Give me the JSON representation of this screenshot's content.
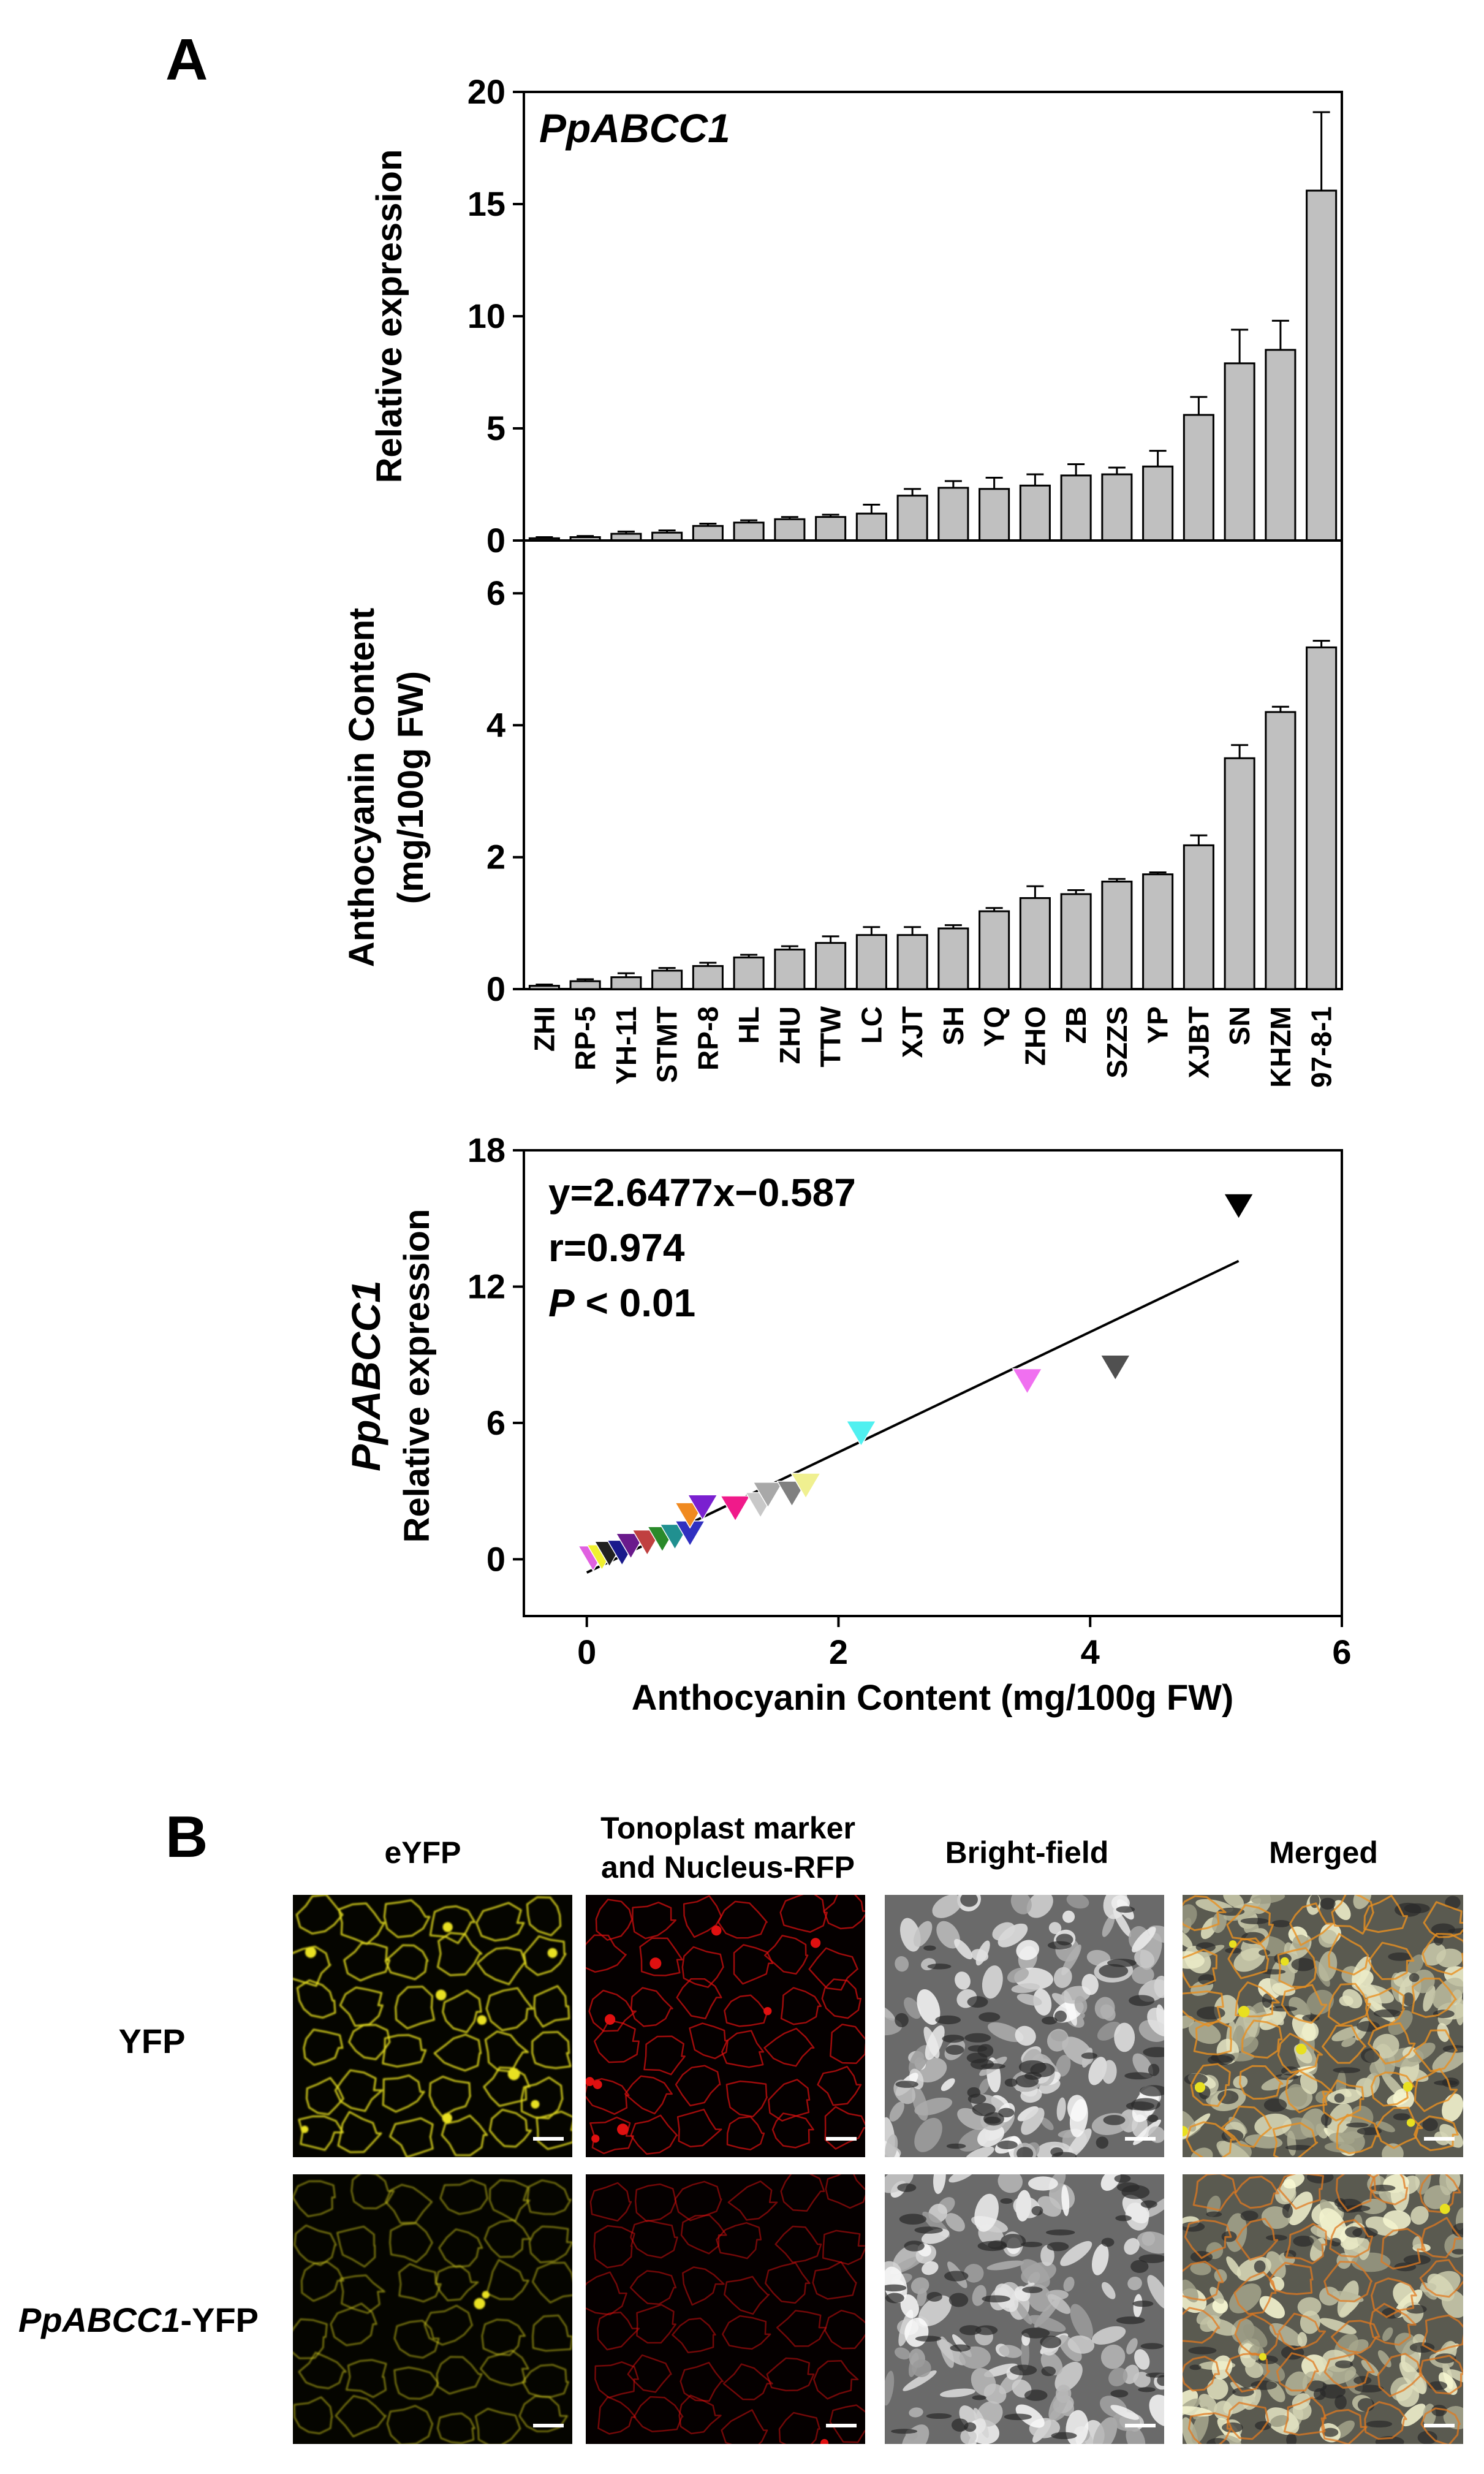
{
  "panel_a_label": "A",
  "panel_b_label": "B",
  "chart_data": [
    {
      "type": "bar",
      "title": "PpABCC1",
      "ylabel": "Relative expression",
      "xlabel": "",
      "ylim": [
        0,
        20
      ],
      "yticks": [
        "0",
        "5",
        "10",
        "15",
        "20"
      ],
      "categories": [
        "ZHI",
        "RP-5",
        "YH-11",
        "STMT",
        "RP-8",
        "HL",
        "ZHU",
        "TTW",
        "LC",
        "XJT",
        "SH",
        "YQ",
        "ZHO",
        "ZB",
        "SZZS",
        "YP",
        "XJBT",
        "SN",
        "KHZM",
        "97-8-1"
      ],
      "values": [
        0.1,
        0.15,
        0.3,
        0.35,
        0.65,
        0.8,
        0.95,
        1.05,
        1.2,
        2.0,
        2.35,
        2.3,
        2.45,
        2.9,
        2.95,
        3.3,
        5.6,
        7.9,
        8.5,
        15.6
      ],
      "errors": [
        0.05,
        0.05,
        0.1,
        0.1,
        0.1,
        0.1,
        0.1,
        0.1,
        0.4,
        0.3,
        0.3,
        0.5,
        0.5,
        0.5,
        0.3,
        0.7,
        0.8,
        1.5,
        1.3,
        3.5
      ]
    },
    {
      "type": "bar",
      "title": "",
      "ylabel_line1": "Anthocyanin Content",
      "ylabel_line2": "(mg/100g FW)",
      "xlabel": "",
      "ylim": [
        0,
        6.8
      ],
      "yticks": [
        "0",
        "2",
        "4",
        "6"
      ],
      "categories": [
        "ZHI",
        "RP-5",
        "YH-11",
        "STMT",
        "RP-8",
        "HL",
        "ZHU",
        "TTW",
        "LC",
        "XJT",
        "SH",
        "YQ",
        "ZHO",
        "ZB",
        "SZZS",
        "YP",
        "XJBT",
        "SN",
        "KHZM",
        "97-8-1"
      ],
      "values": [
        0.05,
        0.12,
        0.18,
        0.28,
        0.35,
        0.48,
        0.6,
        0.7,
        0.82,
        0.82,
        0.92,
        1.18,
        1.38,
        1.44,
        1.63,
        1.74,
        2.18,
        3.5,
        4.2,
        5.18
      ],
      "errors": [
        0.02,
        0.03,
        0.06,
        0.04,
        0.05,
        0.04,
        0.05,
        0.1,
        0.12,
        0.12,
        0.05,
        0.05,
        0.18,
        0.06,
        0.04,
        0.03,
        0.15,
        0.2,
        0.08,
        0.1
      ]
    },
    {
      "type": "scatter",
      "title": "",
      "ylabel_gene": "PpABCC1",
      "ylabel": "Relative expression",
      "xlabel": "Anthocyanin Content (mg/100g FW)",
      "xlim": [
        -0.5,
        6
      ],
      "ylim": [
        -2.5,
        18
      ],
      "xticks": [
        "0",
        "2",
        "4",
        "6"
      ],
      "yticks": [
        "0",
        "6",
        "12",
        "18"
      ],
      "equation": "y=2.6477x−0.587",
      "r_value": "r=0.974",
      "p_label": "P",
      "p_rest": " < 0.01",
      "fit": {
        "slope": 2.6477,
        "intercept": -0.587,
        "x_range": [
          0,
          5.18
        ]
      },
      "points": [
        {
          "x": 0.05,
          "y": 0.1,
          "color": "#e060e0"
        },
        {
          "x": 0.12,
          "y": 0.15,
          "color": "#f0f030"
        },
        {
          "x": 0.18,
          "y": 0.3,
          "color": "#202020"
        },
        {
          "x": 0.28,
          "y": 0.35,
          "color": "#1a1a8c"
        },
        {
          "x": 0.35,
          "y": 0.65,
          "color": "#6a1a8c"
        },
        {
          "x": 0.48,
          "y": 0.8,
          "color": "#c04040"
        },
        {
          "x": 0.6,
          "y": 0.95,
          "color": "#2a8a2a"
        },
        {
          "x": 0.7,
          "y": 1.05,
          "color": "#209090"
        },
        {
          "x": 0.82,
          "y": 1.2,
          "color": "#3030c0"
        },
        {
          "x": 0.82,
          "y": 2.0,
          "color": "#f08a20"
        },
        {
          "x": 0.92,
          "y": 2.35,
          "color": "#7a20d0"
        },
        {
          "x": 1.18,
          "y": 2.3,
          "color": "#f01a8a"
        },
        {
          "x": 1.38,
          "y": 2.45,
          "color": "#c8c8c8"
        },
        {
          "x": 1.44,
          "y": 2.9,
          "color": "#a8a8a8"
        },
        {
          "x": 1.63,
          "y": 2.95,
          "color": "#808080"
        },
        {
          "x": 1.74,
          "y": 3.3,
          "color": "#f0f090"
        },
        {
          "x": 2.18,
          "y": 5.6,
          "color": "#50f0f0"
        },
        {
          "x": 3.5,
          "y": 7.9,
          "color": "#f070f0"
        },
        {
          "x": 4.2,
          "y": 8.5,
          "color": "#505050"
        },
        {
          "x": 5.18,
          "y": 15.6,
          "color": "#000000"
        }
      ]
    }
  ],
  "panel_b": {
    "column_headers": [
      "eYFP",
      "Tonoplast marker",
      "and Nucleus-RFP",
      "Bright-field",
      "Merged"
    ],
    "rows": [
      {
        "label": "YFP"
      },
      {
        "label_italic": "PpABCC1",
        "label_rest": "-YFP"
      }
    ],
    "colors": {
      "yfp": "#e8e020",
      "rfp": "#e01010",
      "background": "#000000"
    }
  }
}
